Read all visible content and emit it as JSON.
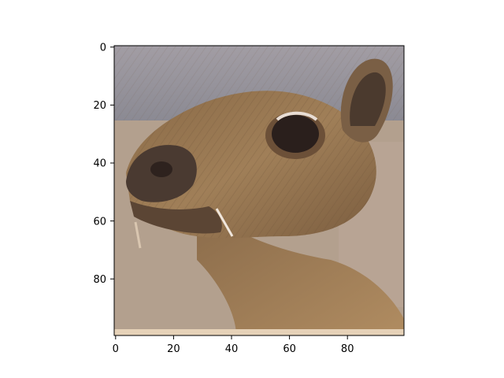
{
  "figure": {
    "image_subject": "close-up portrait of a small brown rodent-like animal (pixelated 100x100 thumbnail)",
    "colors": {
      "background": "#ffffff",
      "axes": "#000000",
      "fur": "#9a7a55",
      "fur_dark": "#6a4f35",
      "fur_light": "#c9a77a",
      "eye": "#2a1f1c",
      "nose": "#3a2c27",
      "wall": "#b3a08e",
      "sky_top": "#8d8d97"
    }
  },
  "axes": {
    "x_ticks": [
      "0",
      "20",
      "40",
      "60",
      "80"
    ],
    "y_ticks": [
      "0",
      "20",
      "40",
      "60",
      "80"
    ],
    "x_tick_values": [
      0,
      20,
      40,
      60,
      80
    ],
    "y_tick_values": [
      0,
      20,
      40,
      60,
      80
    ],
    "x_range": [
      -0.5,
      99.5
    ],
    "y_range": [
      -0.5,
      99.5
    ],
    "y_inverted": true
  }
}
